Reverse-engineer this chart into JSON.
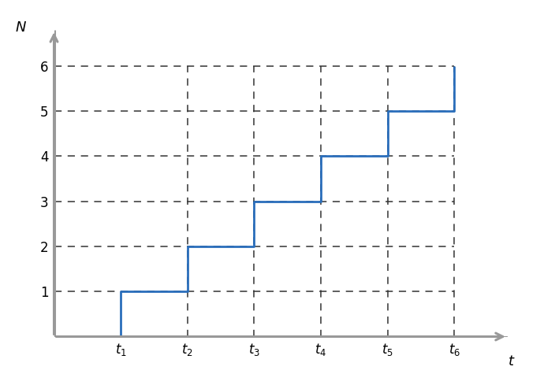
{
  "title": "",
  "xlabel": "t",
  "ylabel": "N",
  "step_x": [
    0,
    1,
    1,
    2,
    2,
    3,
    3,
    4,
    4,
    5,
    5,
    6,
    6
  ],
  "step_y": [
    0,
    0,
    1,
    1,
    2,
    2,
    3,
    3,
    4,
    4,
    5,
    5,
    6
  ],
  "tick_x": [
    1,
    2,
    3,
    4,
    5,
    6
  ],
  "tick_labels": [
    "$t_1$",
    "$t_2$",
    "$t_3$",
    "$t_4$",
    "$t_5$",
    "$t_6$"
  ],
  "tick_y": [
    1,
    2,
    3,
    4,
    5,
    6
  ],
  "dashed_line_color": "#333333",
  "step_color": "#2a6ebb",
  "step_linewidth": 2.0,
  "xlim_data": [
    0,
    6.8
  ],
  "ylim_data": [
    0,
    6.8
  ],
  "axis_color": "#999999",
  "background_color": "#ffffff",
  "dashed_vert_from": 2,
  "arrow_mutation_scale": 16
}
